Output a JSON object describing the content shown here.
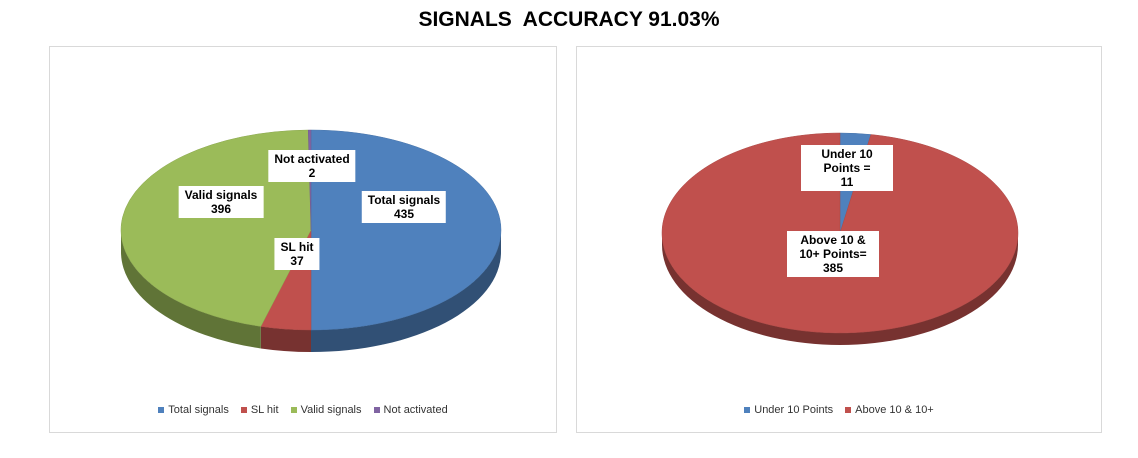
{
  "title": "SIGNALS  ACCURACY 91.03%",
  "chart_data": [
    {
      "type": "pie",
      "categories": [
        "Total signals",
        "SL hit",
        "Valid signals",
        "Not activated"
      ],
      "values": [
        435,
        37,
        396,
        2
      ],
      "colors": [
        "#4f81bd",
        "#c0504d",
        "#9bbb59",
        "#8064a2"
      ],
      "legend": "bottom"
    },
    {
      "type": "pie",
      "categories": [
        "Under 10 Points",
        "Above 10 & 10+"
      ],
      "data_labels": [
        "Under 10 Points =",
        "Above 10 & 10+ Points="
      ],
      "values": [
        11,
        385
      ],
      "colors": [
        "#4f81bd",
        "#c0504d"
      ],
      "legend": "bottom"
    }
  ]
}
